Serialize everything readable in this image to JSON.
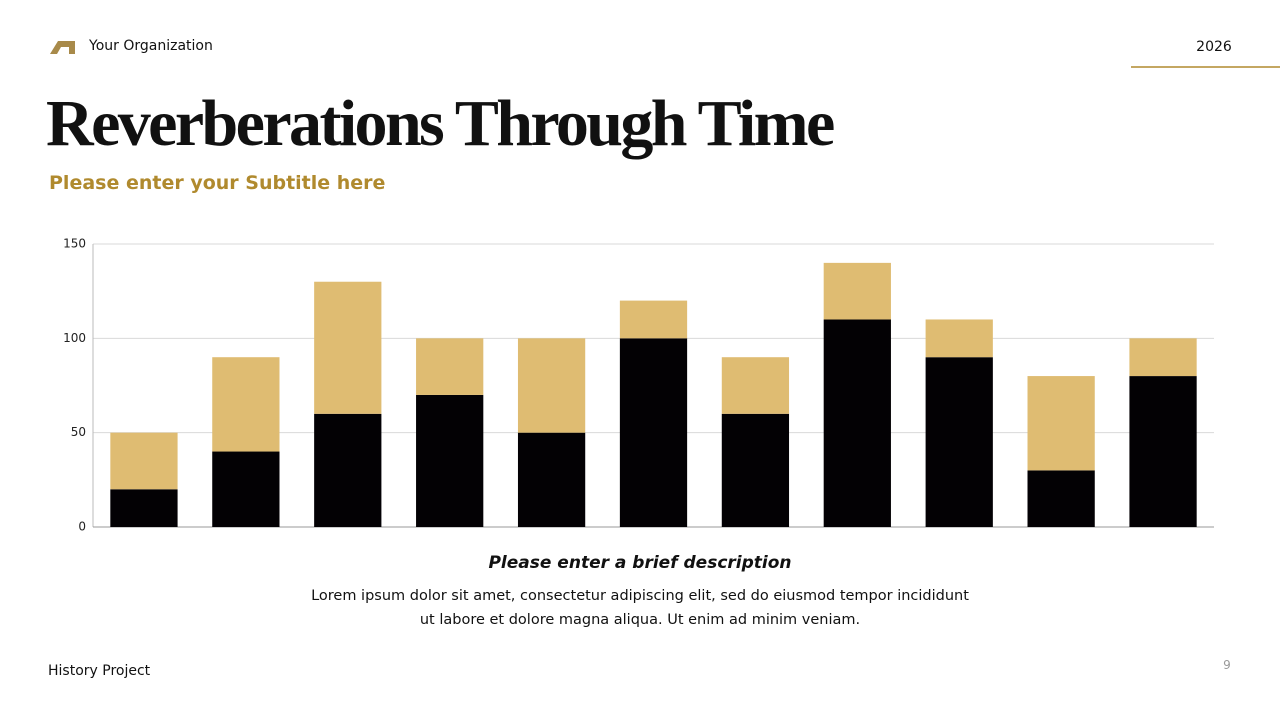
{
  "header": {
    "organization": "Your Organization",
    "year": "2026",
    "title": "Reverberations Through Time",
    "subtitle": "Please enter your Subtitle here"
  },
  "chart_data": {
    "type": "stacked-bar",
    "series": [
      {
        "color": "#030104",
        "values": [
          20,
          40,
          60,
          70,
          50,
          100,
          60,
          110,
          90,
          30,
          80
        ]
      },
      {
        "color": "#dfbc72",
        "values": [
          30,
          50,
          70,
          30,
          50,
          20,
          30,
          30,
          20,
          50,
          20
        ]
      }
    ],
    "ylim": [
      0,
      150
    ],
    "yticks": [
      0,
      50,
      100,
      150
    ],
    "grid": true
  },
  "description": {
    "heading": "Please enter a brief description",
    "body": "Lorem ipsum dolor sit amet, consectetur adipiscing elit, sed do eiusmod tempor incididunt ut labore et dolore magna aliqua. Ut enim ad minim veniam."
  },
  "footer": {
    "project": "History Project",
    "page": "9"
  }
}
